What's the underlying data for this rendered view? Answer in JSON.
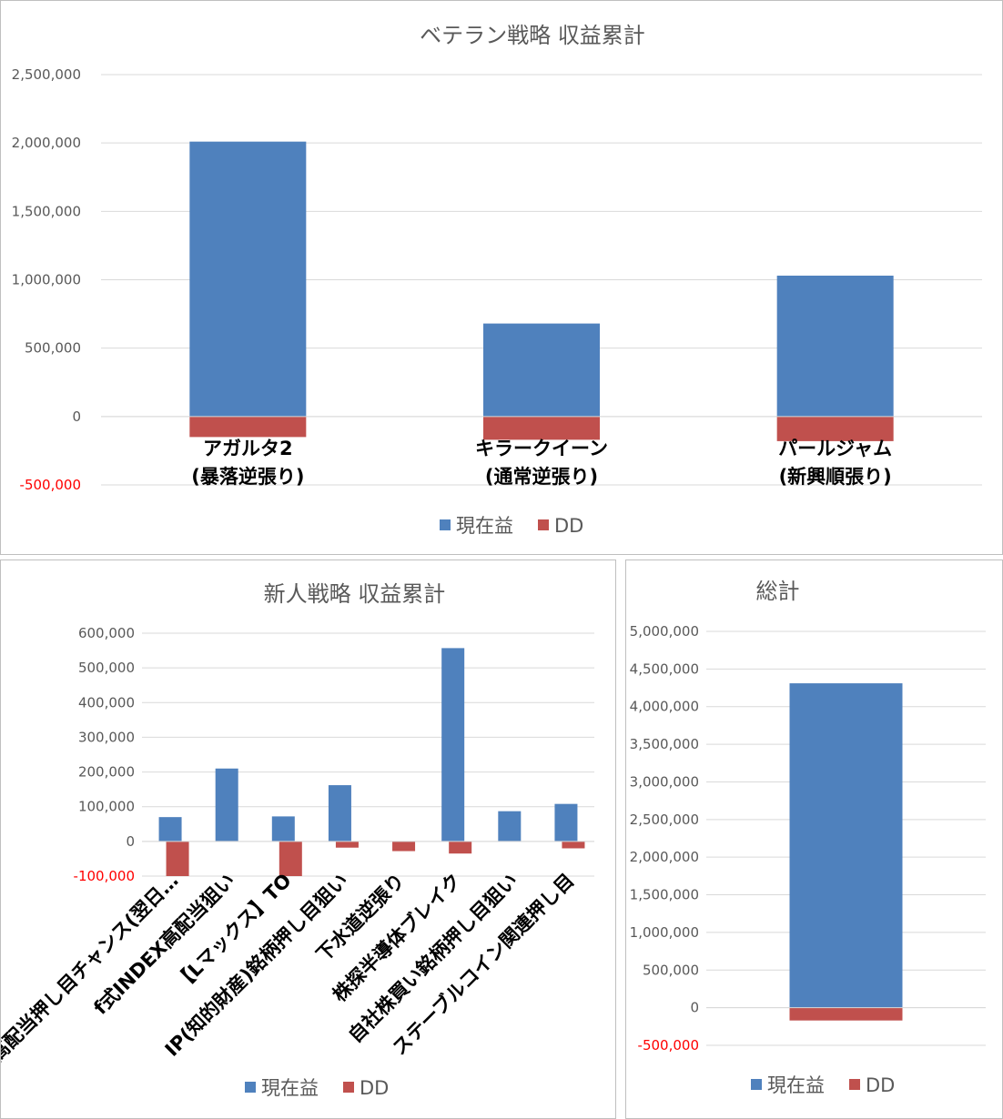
{
  "colors": {
    "current": "#4f81bd",
    "dd": "#c0504d",
    "grid": "#d9d9d9",
    "text": "#595959",
    "negative_tick": "#ff0000"
  },
  "legend": {
    "current": "現在益",
    "dd": "DD"
  },
  "chart_data": [
    {
      "type": "bar",
      "stacked": true,
      "title": "ベテラン戦略 収益累計",
      "categories": [
        [
          "アガルタ2",
          "(暴落逆張り)"
        ],
        [
          "キラークイーン",
          "(通常逆張り)"
        ],
        [
          "パールジャム",
          "(新興順張り)"
        ]
      ],
      "series": [
        {
          "name": "現在益",
          "values": [
            2010000,
            680000,
            1030000
          ]
        },
        {
          "name": "DD",
          "values": [
            -150000,
            -170000,
            -180000
          ]
        }
      ],
      "ylim": [
        -500000,
        2500000
      ],
      "yticks": [
        "-500,000",
        "0",
        "500,000",
        "1,000,000",
        "1,500,000",
        "2,000,000",
        "2,500,000"
      ],
      "legend_position": "bottom",
      "grid": true
    },
    {
      "type": "bar",
      "stacked": true,
      "title": "新人戦略 収益累計",
      "categories": [
        "高配当押し目チャンス(翌日…",
        "f式INDEX高配当狙い",
        "【Lマックス】TO",
        "IP(知的財産)銘柄押し目狙い",
        "下水道逆張り",
        "株探半導体ブレイク",
        "自社株買い銘柄押し目狙い",
        "ステーブルコイン関連押し目"
      ],
      "series": [
        {
          "name": "現在益",
          "values": [
            70000,
            210000,
            72000,
            162000,
            0,
            557000,
            87000,
            108000
          ]
        },
        {
          "name": "DD",
          "values": [
            -100000,
            0,
            -100000,
            -18000,
            -28000,
            -35000,
            0,
            -20000
          ]
        }
      ],
      "ylim": [
        -100000,
        600000
      ],
      "yticks": [
        "-100,000",
        "0",
        "100,000",
        "200,000",
        "300,000",
        "400,000",
        "500,000",
        "600,000"
      ],
      "legend_position": "bottom",
      "grid": true
    },
    {
      "type": "bar",
      "stacked": true,
      "title": "総計",
      "categories": [
        ""
      ],
      "series": [
        {
          "name": "現在益",
          "values": [
            4310000
          ]
        },
        {
          "name": "DD",
          "values": [
            -170000
          ]
        }
      ],
      "ylim": [
        -500000,
        5000000
      ],
      "yticks": [
        "-500,000",
        "0",
        "500,000",
        "1,000,000",
        "1,500,000",
        "2,000,000",
        "2,500,000",
        "3,000,000",
        "3,500,000",
        "4,000,000",
        "4,500,000",
        "5,000,000"
      ],
      "legend_position": "bottom",
      "grid": true
    }
  ]
}
